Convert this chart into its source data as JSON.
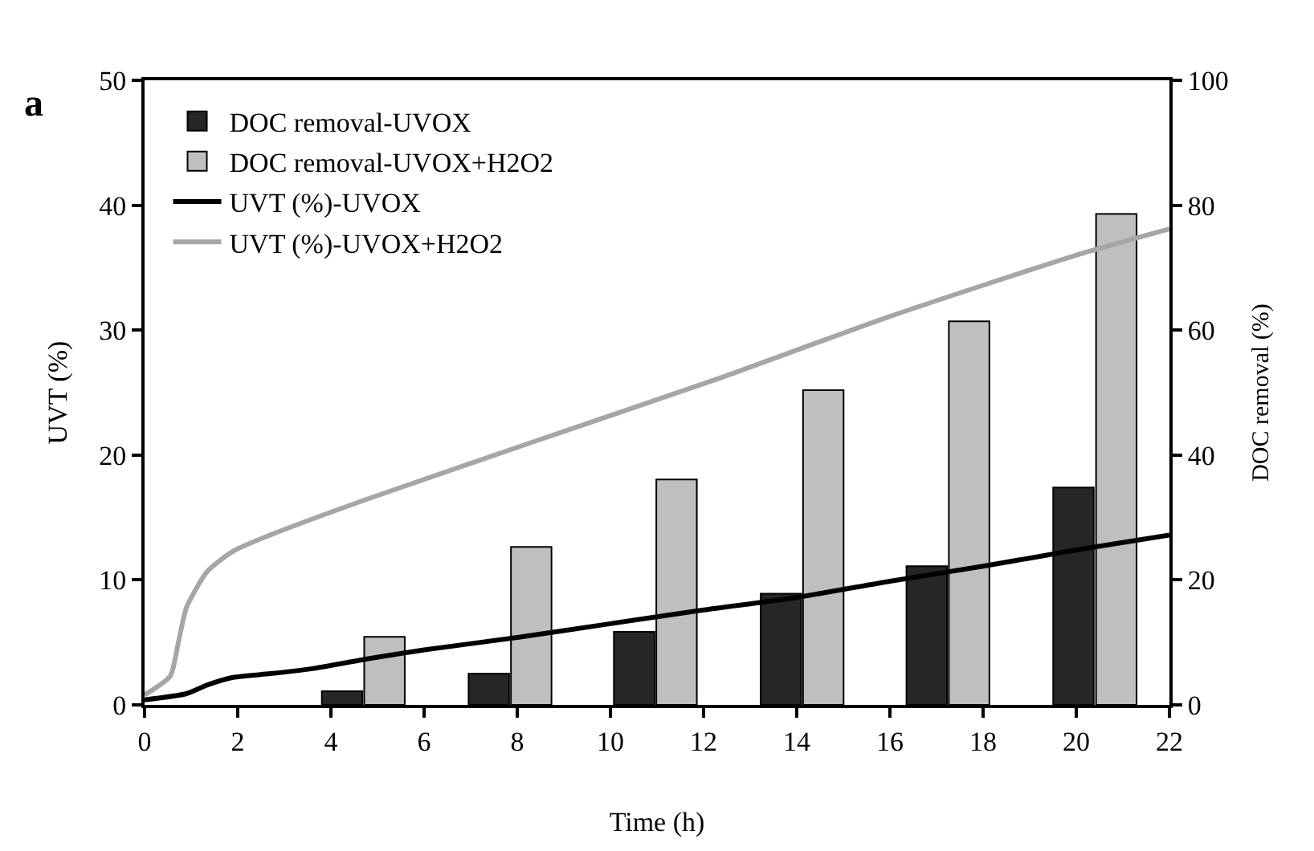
{
  "chart_data": {
    "type": "line",
    "xlabel": "Time (h)",
    "ylabel": "UVT (%)",
    "y2label": "DOC removal (%)",
    "annotations": [
      "a"
    ],
    "xlim": [
      0,
      22
    ],
    "xticks": [
      0,
      2,
      4,
      6,
      8,
      10,
      12,
      14,
      16,
      18,
      20,
      22
    ],
    "ylim": [
      0,
      50
    ],
    "yticks": [
      0,
      10,
      20,
      30,
      40,
      50
    ],
    "y2lim": [
      0,
      100
    ],
    "y2ticks": [
      0,
      20,
      40,
      60,
      80,
      100
    ],
    "grid": false,
    "legend": "top left",
    "marker": "none",
    "line_style": "solid",
    "series": [
      {
        "name": "DOC removal-UVOX",
        "type": "bar",
        "axis": "y2",
        "color": "#262626",
        "x": [
          4.24,
          7.39,
          10.51,
          13.66,
          16.79,
          19.94
        ],
        "values": [
          2.2,
          5.0,
          11.7,
          17.8,
          22.2,
          34.8
        ]
      },
      {
        "name": "DOC removal-UVOX+H2O2",
        "type": "bar",
        "axis": "y2",
        "color": "#bfbfbf",
        "x": [
          5.15,
          8.3,
          11.42,
          14.57,
          17.7,
          20.86
        ],
        "values": [
          10.9,
          25.3,
          36.1,
          50.4,
          61.4,
          78.6
        ]
      },
      {
        "name": "UVT (%)-UVOX",
        "color": "#000000",
        "x": [
          0,
          0.9,
          1.35,
          1.9,
          2.7,
          3.6,
          4.8,
          6,
          8,
          10,
          12,
          14,
          16,
          18,
          20,
          22
        ],
        "values": [
          0.4,
          0.9,
          1.6,
          2.2,
          2.5,
          2.9,
          3.7,
          4.4,
          5.4,
          6.5,
          7.6,
          8.6,
          9.9,
          11.1,
          12.4,
          13.6
        ]
      },
      {
        "name": "UVT (%)-UVOX+H2O2",
        "color": "#a6a6a6",
        "x": [
          0,
          0.55,
          0.72,
          0.9,
          1.35,
          1.9,
          2.7,
          4.8,
          8.3,
          12.3,
          16,
          20,
          22
        ],
        "values": [
          0.8,
          2.3,
          4.9,
          7.8,
          10.7,
          12.3,
          13.6,
          16.5,
          21,
          26.1,
          31.1,
          36,
          38.1
        ]
      }
    ]
  }
}
